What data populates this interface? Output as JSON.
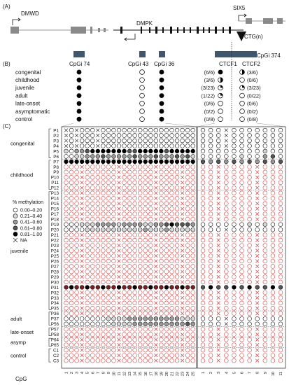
{
  "panel_labels": {
    "a": "(A)",
    "b": "(B)",
    "c": "(C)"
  },
  "genes": {
    "left": "DMWD",
    "middle": "DMPK",
    "right": "SIX5",
    "repeat": "CTG(n)"
  },
  "cpg_islands": [
    {
      "label": "CpGi 74"
    },
    {
      "label": "CpGi 43"
    },
    {
      "label": "CpGi 36"
    },
    {
      "label": "CpGi 374"
    }
  ],
  "ctcf_sites": [
    "CTCF1",
    "CTCF2"
  ],
  "phenotype_summary": [
    {
      "group": "congenital",
      "dots": [
        "filled",
        "empty",
        "filled"
      ],
      "ctcf1": "(6/6)",
      "ctcf1_symbol": "filled",
      "ctcf2": "(3/6)",
      "ctcf2_symbol": "half"
    },
    {
      "group": "childhood",
      "dots": [
        "filled",
        "empty",
        "filled"
      ],
      "ctcf1": "(3/6)",
      "ctcf1_symbol": "half",
      "ctcf2": "(0/6)",
      "ctcf2_symbol": "empty"
    },
    {
      "group": "juvenile",
      "dots": [
        "filled",
        "empty",
        "filled"
      ],
      "ctcf1": "(3/23)",
      "ctcf1_symbol": "quarter",
      "ctcf2": "(3/23)",
      "ctcf2_symbol": "quarter"
    },
    {
      "group": "adult",
      "dots": [
        "filled",
        "empty",
        "filled"
      ],
      "ctcf1": "(1/22)",
      "ctcf1_symbol": "quarter",
      "ctcf2": "(0/22)",
      "ctcf2_symbol": "empty"
    },
    {
      "group": "late-onset",
      "dots": [
        "filled",
        "empty",
        "filled"
      ],
      "ctcf1": "(0/6)",
      "ctcf1_symbol": "empty",
      "ctcf2": "(0/6)",
      "ctcf2_symbol": "empty"
    },
    {
      "group": "asymptomatic",
      "dots": [
        "filled",
        "empty",
        "filled"
      ],
      "ctcf1": "(0/2)",
      "ctcf1_symbol": "empty",
      "ctcf2": "(0/2)",
      "ctcf2_symbol": "empty"
    },
    {
      "group": "control",
      "dots": [
        "filled",
        "empty",
        "filled"
      ],
      "ctcf1": "(0/8)",
      "ctcf1_symbol": "empty",
      "ctcf2": "(0/8)",
      "ctcf2_symbol": "empty"
    }
  ],
  "legend": {
    "title": "% methylation",
    "items": [
      {
        "label": "0.00–0.20",
        "color": "#ffffff"
      },
      {
        "label": "0.21–0.40",
        "color": "#d8d8d8"
      },
      {
        "label": "0.41–0.60",
        "color": "#9a9a9a"
      },
      {
        "label": "0.61–0.80",
        "color": "#555555"
      },
      {
        "label": "0.81–1.00",
        "color": "#000000"
      }
    ],
    "na_label": "NA"
  },
  "heatmap_groups": [
    {
      "name": "congenital",
      "patients": [
        "P1",
        "P2",
        "P3",
        "P4",
        "P5",
        "P6"
      ]
    },
    {
      "name": "childhood",
      "patients": [
        "P7",
        "P8",
        "P9",
        "P10",
        "P11",
        "P12"
      ]
    },
    {
      "name": "juvenile",
      "patients": [
        "P13",
        "P14",
        "P15",
        "P16",
        "P17",
        "P18",
        "P19",
        "P20",
        "P21",
        "P22",
        "P23",
        "P24",
        "P25",
        "P26",
        "P27",
        "P28",
        "P29",
        "P30",
        "P31",
        "P32",
        "P33",
        "P34",
        "P35"
      ]
    },
    {
      "name": "adult",
      "patients": [
        "P36",
        "P37",
        "P56"
      ]
    },
    {
      "name": "late-onset",
      "patients": [
        "P57",
        "P58"
      ]
    },
    {
      "name": "asymp",
      "patients": [
        "P64",
        "P65"
      ]
    },
    {
      "name": "control",
      "patients": [
        "C1",
        "C2",
        "C3"
      ]
    }
  ],
  "cpg_axis_label": "CpG",
  "left_cpg_labels": [
    "1",
    "2",
    "3",
    "4",
    "5",
    "6",
    "7",
    "8",
    "9",
    "10",
    "11",
    "12",
    "13",
    "14",
    "15",
    "16",
    "17",
    "18",
    "19",
    "20",
    "21",
    "22",
    "23",
    "24",
    "25"
  ],
  "right_cpg_labels": [
    "1",
    "2",
    "3",
    "4",
    "5",
    "6",
    "7",
    "8",
    "9",
    "10",
    "11"
  ],
  "colors": {
    "island": "#3f5670",
    "red_row": "#d23a3a",
    "dark_row": "#7a1f1f",
    "na": "#333333"
  }
}
